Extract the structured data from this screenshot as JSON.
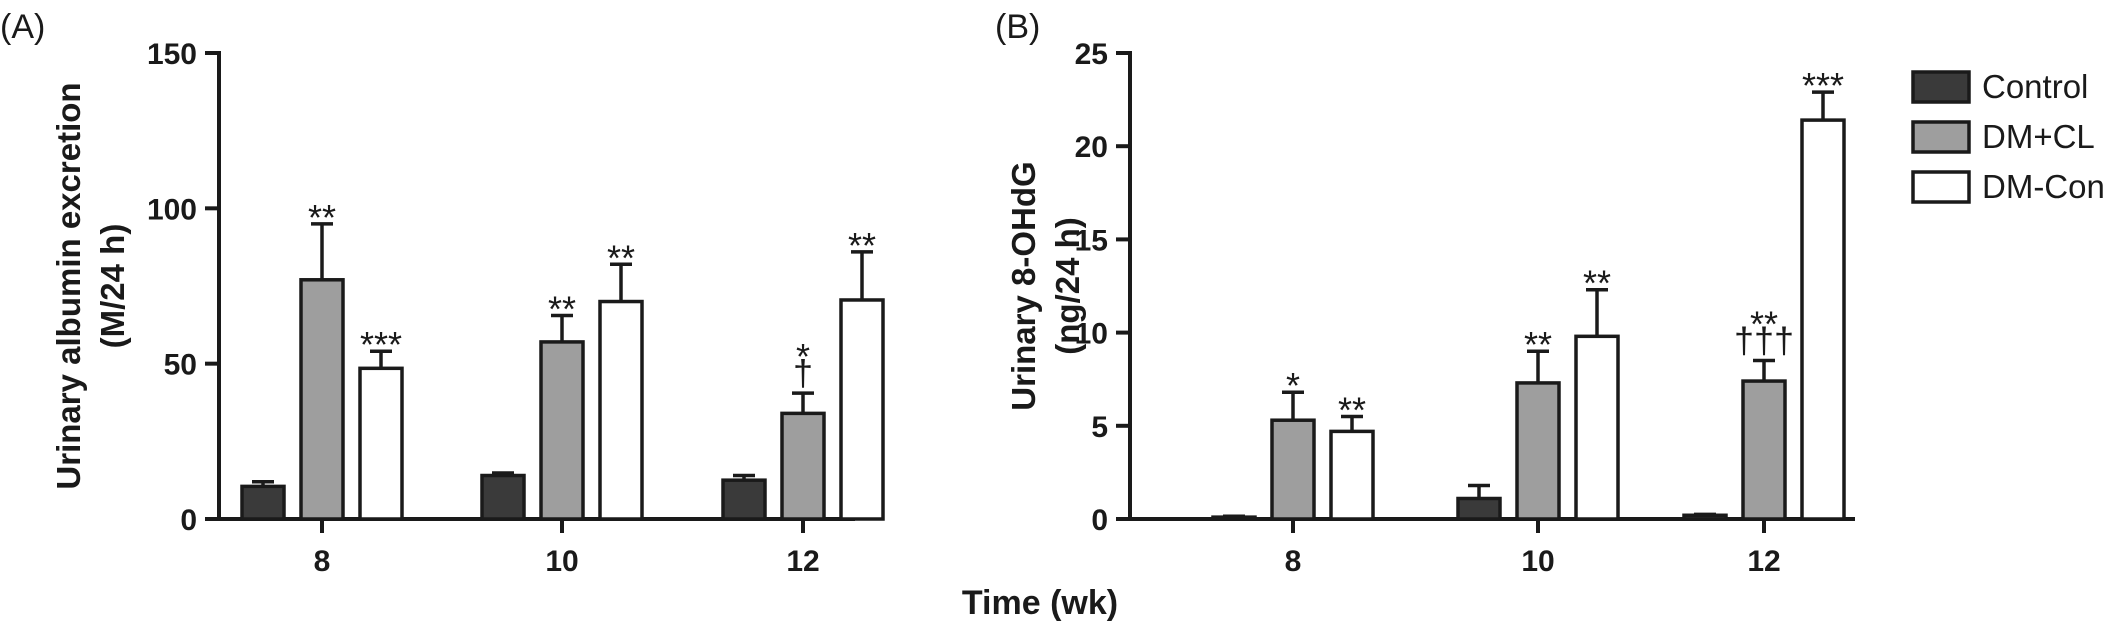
{
  "x_title": "Time (wk)",
  "colors": {
    "Control": "#3a3a3a",
    "DM+CL": "#9e9e9e",
    "DM-Con": "#ffffff"
  },
  "chart_data": [
    {
      "type": "bar",
      "panel_label": "(A)",
      "ylabel_line1": "Urinary albumin excretion",
      "ylabel_line2": "(M/24 h)",
      "categories": [
        "8",
        "10",
        "12"
      ],
      "ylim": [
        0,
        150
      ],
      "yticks": [
        0,
        50,
        100,
        150
      ],
      "series": [
        {
          "name": "Control",
          "values": [
            10.5,
            14,
            12.5
          ],
          "errors": [
            1.5,
            0.8,
            1.5
          ],
          "marks": [
            "",
            "",
            ""
          ]
        },
        {
          "name": "DM+CL",
          "values": [
            77,
            57,
            34
          ],
          "errors": [
            18,
            8.5,
            6.5
          ],
          "marks": [
            [
              "**"
            ],
            [
              "**"
            ],
            [
              "*",
              "†"
            ]
          ]
        },
        {
          "name": "DM-Con",
          "values": [
            48.5,
            70,
            70.5
          ],
          "errors": [
            5.5,
            12,
            15.5
          ],
          "marks": [
            [
              "***"
            ],
            [
              "**"
            ],
            [
              "**"
            ]
          ]
        }
      ]
    },
    {
      "type": "bar",
      "panel_label": "(B)",
      "ylabel_line1": "Urinary 8-OHdG",
      "ylabel_line2": "(ng/24 h)",
      "categories": [
        "8",
        "10",
        "12"
      ],
      "ylim": [
        0,
        25
      ],
      "yticks": [
        0,
        5,
        10,
        15,
        20,
        25
      ],
      "legend_position": "top-right",
      "series": [
        {
          "name": "Control",
          "values": [
            0.1,
            1.1,
            0.2
          ],
          "errors": [
            0.05,
            0.7,
            0.05
          ],
          "marks": [
            "",
            "",
            ""
          ]
        },
        {
          "name": "DM+CL",
          "values": [
            5.3,
            7.3,
            7.4
          ],
          "errors": [
            1.5,
            1.7,
            1.1
          ],
          "marks": [
            [
              "*"
            ],
            [
              "**"
            ],
            [
              "**",
              "†††"
            ]
          ]
        },
        {
          "name": "DM-Con",
          "values": [
            4.7,
            9.8,
            21.4
          ],
          "errors": [
            0.8,
            2.5,
            1.5
          ],
          "marks": [
            [
              "**"
            ],
            [
              "**"
            ],
            [
              "***"
            ]
          ]
        }
      ]
    }
  ]
}
